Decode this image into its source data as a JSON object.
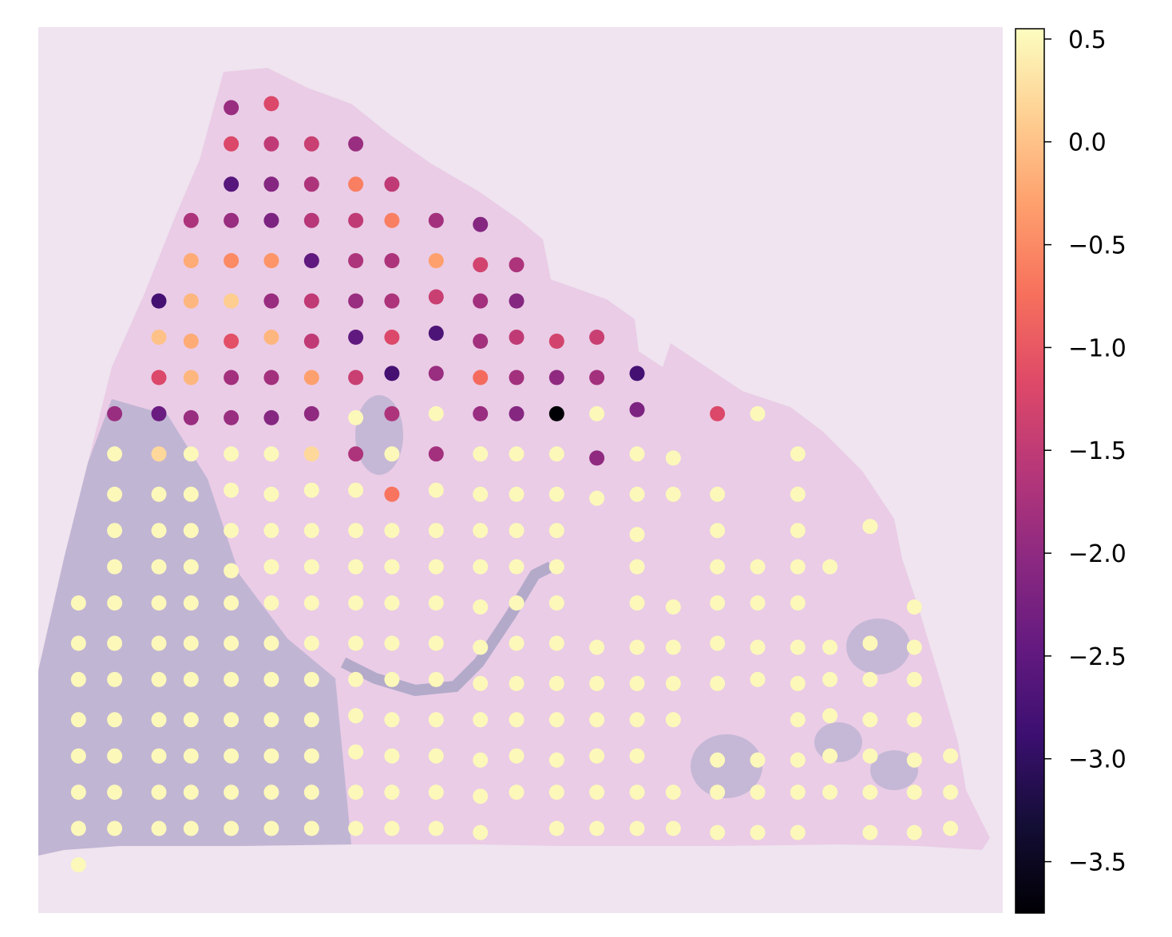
{
  "chart_data": {
    "type": "scatter",
    "title": "",
    "xlabel": "",
    "ylabel": "",
    "background": "tissue histology image (H&E stain)",
    "grid": false,
    "axes_visible": false,
    "colormap": "magma",
    "colorbar": {
      "placement": "right",
      "vmin": -3.75,
      "vmax": 0.55,
      "ticks": [
        {
          "value": 0.5,
          "label": "0.5"
        },
        {
          "value": 0.0,
          "label": "0.0"
        },
        {
          "value": -0.5,
          "label": "−0.5"
        },
        {
          "value": -1.0,
          "label": "−1.0"
        },
        {
          "value": -1.5,
          "label": "−1.5"
        },
        {
          "value": -2.0,
          "label": "−2.0"
        },
        {
          "value": -2.5,
          "label": "−2.5"
        },
        {
          "value": -3.0,
          "label": "−3.0"
        },
        {
          "value": -3.5,
          "label": "−3.5"
        }
      ]
    },
    "xlim": [
      0,
      24
    ],
    "ylim": [
      0,
      22
    ],
    "points": [
      [
        4.8,
        20,
        -1.9
      ],
      [
        5.8,
        20.1,
        -1.2
      ],
      [
        4.8,
        19.1,
        -1.2
      ],
      [
        5.8,
        19.1,
        -1.5
      ],
      [
        6.8,
        19.1,
        -1.4
      ],
      [
        7.9,
        19.1,
        -1.9
      ],
      [
        4.8,
        18.1,
        -2.6
      ],
      [
        5.8,
        18.1,
        -2.1
      ],
      [
        6.8,
        18.1,
        -1.7
      ],
      [
        7.9,
        18.1,
        -0.6
      ],
      [
        8.8,
        18.1,
        -1.5
      ],
      [
        3.8,
        17.2,
        -1.7
      ],
      [
        4.8,
        17.2,
        -1.9
      ],
      [
        5.8,
        17.2,
        -2.2
      ],
      [
        6.8,
        17.2,
        -1.6
      ],
      [
        7.9,
        17.2,
        -1.5
      ],
      [
        8.8,
        17.2,
        -0.6
      ],
      [
        9.9,
        17.2,
        -1.8
      ],
      [
        11,
        17.1,
        -2.1
      ],
      [
        3.8,
        16.2,
        -0.2
      ],
      [
        4.8,
        16.2,
        -0.5
      ],
      [
        5.8,
        16.2,
        -0.4
      ],
      [
        6.8,
        16.2,
        -2.5
      ],
      [
        7.9,
        16.2,
        -1.7
      ],
      [
        8.8,
        16.2,
        -1.7
      ],
      [
        9.9,
        16.2,
        -0.3
      ],
      [
        11,
        16.1,
        -1.3
      ],
      [
        11.9,
        16.1,
        -1.7
      ],
      [
        3,
        15.2,
        -2.8
      ],
      [
        3.8,
        15.2,
        -0.1
      ],
      [
        4.8,
        15.2,
        0.1
      ],
      [
        5.8,
        15.2,
        -1.9
      ],
      [
        6.8,
        15.2,
        -1.5
      ],
      [
        7.9,
        15.2,
        -1.9
      ],
      [
        8.8,
        15.2,
        -1.7
      ],
      [
        9.9,
        15.3,
        -1.4
      ],
      [
        11,
        15.2,
        -1.8
      ],
      [
        11.9,
        15.2,
        -2.1
      ],
      [
        3,
        14.3,
        0.0
      ],
      [
        3.8,
        14.2,
        -0.2
      ],
      [
        4.8,
        14.2,
        -1.1
      ],
      [
        5.8,
        14.3,
        -0.1
      ],
      [
        6.8,
        14.2,
        -1.5
      ],
      [
        7.9,
        14.3,
        -2.5
      ],
      [
        8.8,
        14.3,
        -1.2
      ],
      [
        9.9,
        14.4,
        -2.7
      ],
      [
        11,
        14.2,
        -1.8
      ],
      [
        11.9,
        14.3,
        -1.5
      ],
      [
        12.9,
        14.2,
        -1.3
      ],
      [
        13.9,
        14.3,
        -1.4
      ],
      [
        3,
        13.3,
        -1.2
      ],
      [
        3.8,
        13.3,
        -0.1
      ],
      [
        4.8,
        13.3,
        -1.8
      ],
      [
        5.8,
        13.3,
        -1.8
      ],
      [
        6.8,
        13.3,
        -0.3
      ],
      [
        7.9,
        13.3,
        -1.4
      ],
      [
        8.8,
        13.4,
        -2.8
      ],
      [
        9.9,
        13.4,
        -1.9
      ],
      [
        11,
        13.3,
        -0.8
      ],
      [
        11.9,
        13.3,
        -1.8
      ],
      [
        12.9,
        13.3,
        -2.0
      ],
      [
        13.9,
        13.3,
        -1.8
      ],
      [
        14.9,
        13.4,
        -2.8
      ],
      [
        1.9,
        12.4,
        -1.9
      ],
      [
        3,
        12.4,
        -2.4
      ],
      [
        3.8,
        12.3,
        -1.9
      ],
      [
        4.8,
        12.3,
        -1.9
      ],
      [
        5.8,
        12.3,
        -2.1
      ],
      [
        6.8,
        12.4,
        -2.0
      ],
      [
        7.9,
        12.3,
        0.5
      ],
      [
        8.8,
        12.4,
        -1.7
      ],
      [
        9.9,
        12.4,
        0.5
      ],
      [
        11,
        12.4,
        -1.9
      ],
      [
        11.9,
        12.4,
        -2.1
      ],
      [
        12.9,
        12.4,
        -3.75
      ],
      [
        13.9,
        12.4,
        0.5
      ],
      [
        14.9,
        12.5,
        -2.2
      ],
      [
        16.9,
        12.4,
        -1.2
      ],
      [
        17.9,
        12.4,
        0.5
      ],
      [
        1.9,
        11.4,
        0.5
      ],
      [
        3,
        11.4,
        0.2
      ],
      [
        3.8,
        11.4,
        0.5
      ],
      [
        4.8,
        11.4,
        0.5
      ],
      [
        5.8,
        11.4,
        0.5
      ],
      [
        6.8,
        11.4,
        0.2
      ],
      [
        7.9,
        11.4,
        -1.7
      ],
      [
        8.8,
        11.4,
        0.5
      ],
      [
        9.9,
        11.4,
        -1.8
      ],
      [
        11,
        11.4,
        0.5
      ],
      [
        11.9,
        11.4,
        0.5
      ],
      [
        12.9,
        11.4,
        0.5
      ],
      [
        13.9,
        11.3,
        -2.0
      ],
      [
        14.9,
        11.4,
        0.5
      ],
      [
        15.8,
        11.3,
        0.5
      ],
      [
        18.9,
        11.4,
        0.5
      ],
      [
        1.9,
        10.4,
        0.5
      ],
      [
        3,
        10.4,
        0.5
      ],
      [
        3.8,
        10.4,
        0.5
      ],
      [
        4.8,
        10.5,
        0.5
      ],
      [
        5.8,
        10.4,
        0.5
      ],
      [
        6.8,
        10.5,
        0.5
      ],
      [
        7.9,
        10.5,
        0.5
      ],
      [
        8.8,
        10.4,
        -0.7
      ],
      [
        9.9,
        10.5,
        0.5
      ],
      [
        11,
        10.4,
        0.5
      ],
      [
        11.9,
        10.4,
        0.5
      ],
      [
        12.9,
        10.4,
        0.5
      ],
      [
        13.9,
        10.3,
        0.5
      ],
      [
        14.9,
        10.4,
        0.5
      ],
      [
        15.8,
        10.4,
        0.5
      ],
      [
        16.9,
        10.4,
        0.5
      ],
      [
        18.9,
        10.4,
        0.5
      ],
      [
        1.9,
        9.5,
        0.5
      ],
      [
        3,
        9.5,
        0.5
      ],
      [
        3.8,
        9.5,
        0.5
      ],
      [
        4.8,
        9.5,
        0.5
      ],
      [
        5.8,
        9.5,
        0.5
      ],
      [
        6.8,
        9.5,
        0.5
      ],
      [
        7.9,
        9.5,
        0.5
      ],
      [
        8.8,
        9.5,
        0.5
      ],
      [
        9.9,
        9.5,
        0.5
      ],
      [
        11,
        9.5,
        0.5
      ],
      [
        11.9,
        9.5,
        0.5
      ],
      [
        12.9,
        9.5,
        0.5
      ],
      [
        14.9,
        9.4,
        0.5
      ],
      [
        16.9,
        9.5,
        0.5
      ],
      [
        18.9,
        9.5,
        0.5
      ],
      [
        20.7,
        9.6,
        0.5
      ],
      [
        1.9,
        8.6,
        0.5
      ],
      [
        3,
        8.6,
        0.5
      ],
      [
        3.8,
        8.6,
        0.5
      ],
      [
        4.8,
        8.5,
        0.5
      ],
      [
        5.8,
        8.6,
        0.5
      ],
      [
        6.8,
        8.6,
        0.5
      ],
      [
        7.9,
        8.6,
        0.5
      ],
      [
        8.8,
        8.6,
        0.5
      ],
      [
        9.9,
        8.6,
        0.5
      ],
      [
        11,
        8.6,
        0.5
      ],
      [
        11.9,
        8.6,
        0.5
      ],
      [
        12.9,
        8.6,
        0.5
      ],
      [
        14.9,
        8.6,
        0.5
      ],
      [
        16.9,
        8.6,
        0.5
      ],
      [
        17.9,
        8.6,
        0.5
      ],
      [
        18.9,
        8.6,
        0.5
      ],
      [
        19.7,
        8.6,
        0.5
      ],
      [
        1,
        7.7,
        0.5
      ],
      [
        1.9,
        7.7,
        0.5
      ],
      [
        3,
        7.7,
        0.5
      ],
      [
        3.8,
        7.7,
        0.5
      ],
      [
        4.8,
        7.7,
        0.5
      ],
      [
        5.8,
        7.7,
        0.5
      ],
      [
        6.8,
        7.7,
        0.5
      ],
      [
        7.9,
        7.7,
        0.5
      ],
      [
        8.8,
        7.7,
        0.5
      ],
      [
        9.9,
        7.7,
        0.5
      ],
      [
        11,
        7.6,
        0.5
      ],
      [
        11.9,
        7.7,
        0.5
      ],
      [
        12.9,
        7.7,
        0.5
      ],
      [
        14.9,
        7.7,
        0.5
      ],
      [
        15.8,
        7.6,
        0.5
      ],
      [
        16.9,
        7.7,
        0.5
      ],
      [
        17.9,
        7.7,
        0.5
      ],
      [
        18.9,
        7.7,
        0.5
      ],
      [
        21.8,
        7.6,
        0.5
      ],
      [
        1,
        6.7,
        0.5
      ],
      [
        1.9,
        6.7,
        0.5
      ],
      [
        3,
        6.7,
        0.5
      ],
      [
        3.8,
        6.7,
        0.5
      ],
      [
        4.8,
        6.7,
        0.5
      ],
      [
        5.8,
        6.7,
        0.5
      ],
      [
        6.8,
        6.7,
        0.5
      ],
      [
        7.9,
        6.7,
        0.5
      ],
      [
        8.8,
        6.7,
        0.5
      ],
      [
        9.9,
        6.7,
        0.5
      ],
      [
        11,
        6.6,
        0.5
      ],
      [
        11.9,
        6.7,
        0.5
      ],
      [
        12.9,
        6.7,
        0.5
      ],
      [
        13.9,
        6.6,
        0.5
      ],
      [
        14.9,
        6.6,
        0.5
      ],
      [
        15.8,
        6.6,
        0.5
      ],
      [
        16.9,
        6.7,
        0.5
      ],
      [
        17.9,
        6.6,
        0.5
      ],
      [
        18.9,
        6.6,
        0.5
      ],
      [
        19.7,
        6.6,
        0.5
      ],
      [
        20.7,
        6.7,
        0.5
      ],
      [
        21.8,
        6.6,
        0.5
      ],
      [
        1,
        5.8,
        0.5
      ],
      [
        1.9,
        5.8,
        0.5
      ],
      [
        3,
        5.8,
        0.5
      ],
      [
        3.8,
        5.8,
        0.5
      ],
      [
        4.8,
        5.8,
        0.5
      ],
      [
        5.8,
        5.8,
        0.5
      ],
      [
        6.8,
        5.8,
        0.5
      ],
      [
        7.9,
        5.8,
        0.5
      ],
      [
        8.8,
        5.8,
        0.5
      ],
      [
        9.9,
        5.8,
        0.5
      ],
      [
        11,
        5.7,
        0.5
      ],
      [
        11.9,
        5.7,
        0.5
      ],
      [
        12.9,
        5.7,
        0.5
      ],
      [
        13.9,
        5.7,
        0.5
      ],
      [
        14.9,
        5.7,
        0.5
      ],
      [
        15.8,
        5.7,
        0.5
      ],
      [
        16.9,
        5.7,
        0.5
      ],
      [
        17.9,
        5.8,
        0.5
      ],
      [
        18.9,
        5.7,
        0.5
      ],
      [
        19.7,
        5.8,
        0.5
      ],
      [
        20.7,
        5.8,
        0.5
      ],
      [
        21.8,
        5.8,
        0.5
      ],
      [
        1,
        4.8,
        0.5
      ],
      [
        1.9,
        4.8,
        0.5
      ],
      [
        3,
        4.8,
        0.5
      ],
      [
        3.8,
        4.8,
        0.5
      ],
      [
        4.8,
        4.8,
        0.5
      ],
      [
        5.8,
        4.8,
        0.5
      ],
      [
        6.8,
        4.8,
        0.5
      ],
      [
        7.9,
        4.9,
        0.5
      ],
      [
        8.8,
        4.8,
        0.5
      ],
      [
        9.9,
        4.8,
        0.5
      ],
      [
        11,
        4.8,
        0.5
      ],
      [
        11.9,
        4.8,
        0.5
      ],
      [
        12.9,
        4.8,
        0.5
      ],
      [
        13.9,
        4.8,
        0.5
      ],
      [
        14.9,
        4.8,
        0.5
      ],
      [
        15.8,
        4.8,
        0.5
      ],
      [
        18.9,
        4.8,
        0.5
      ],
      [
        19.7,
        4.9,
        0.5
      ],
      [
        20.7,
        4.8,
        0.5
      ],
      [
        21.8,
        4.8,
        0.5
      ],
      [
        1,
        3.9,
        0.5
      ],
      [
        1.9,
        3.9,
        0.5
      ],
      [
        3,
        3.9,
        0.5
      ],
      [
        3.8,
        3.9,
        0.5
      ],
      [
        4.8,
        3.9,
        0.5
      ],
      [
        5.8,
        3.9,
        0.5
      ],
      [
        6.8,
        3.9,
        0.5
      ],
      [
        7.9,
        4.0,
        0.5
      ],
      [
        8.8,
        3.9,
        0.5
      ],
      [
        9.9,
        3.9,
        0.5
      ],
      [
        11,
        3.8,
        0.5
      ],
      [
        11.9,
        3.9,
        0.5
      ],
      [
        12.9,
        3.8,
        0.5
      ],
      [
        13.9,
        3.9,
        0.5
      ],
      [
        14.9,
        3.9,
        0.5
      ],
      [
        16.9,
        3.8,
        0.5
      ],
      [
        17.9,
        3.8,
        0.5
      ],
      [
        18.9,
        3.8,
        0.5
      ],
      [
        19.7,
        3.9,
        0.5
      ],
      [
        20.7,
        3.9,
        0.5
      ],
      [
        21.8,
        3.8,
        0.5
      ],
      [
        22.7,
        3.9,
        0.5
      ],
      [
        1,
        3.0,
        0.5
      ],
      [
        1.9,
        3.0,
        0.5
      ],
      [
        3,
        3.0,
        0.5
      ],
      [
        3.8,
        3.0,
        0.5
      ],
      [
        4.8,
        3.0,
        0.5
      ],
      [
        5.8,
        3.0,
        0.5
      ],
      [
        6.8,
        3.0,
        0.5
      ],
      [
        7.9,
        3.0,
        0.5
      ],
      [
        8.8,
        3.0,
        0.5
      ],
      [
        9.9,
        3.0,
        0.5
      ],
      [
        11,
        2.9,
        0.5
      ],
      [
        11.9,
        3.0,
        0.5
      ],
      [
        12.9,
        3.0,
        0.5
      ],
      [
        13.9,
        3.0,
        0.5
      ],
      [
        14.9,
        3.0,
        0.5
      ],
      [
        15.8,
        3.0,
        0.5
      ],
      [
        16.9,
        3.0,
        0.5
      ],
      [
        17.9,
        3.0,
        0.5
      ],
      [
        18.9,
        3.0,
        0.5
      ],
      [
        19.7,
        3.0,
        0.5
      ],
      [
        20.7,
        3.0,
        0.5
      ],
      [
        21.8,
        3.0,
        0.5
      ],
      [
        22.7,
        3.0,
        0.5
      ],
      [
        1,
        2.1,
        0.5
      ],
      [
        1.9,
        2.1,
        0.5
      ],
      [
        3,
        2.1,
        0.5
      ],
      [
        3.8,
        2.1,
        0.5
      ],
      [
        4.8,
        2.1,
        0.5
      ],
      [
        5.8,
        2.1,
        0.5
      ],
      [
        6.8,
        2.1,
        0.5
      ],
      [
        7.9,
        2.1,
        0.5
      ],
      [
        8.8,
        2.1,
        0.5
      ],
      [
        9.9,
        2.1,
        0.5
      ],
      [
        11,
        2.0,
        0.5
      ],
      [
        12.9,
        2.1,
        0.5
      ],
      [
        13.9,
        2.1,
        0.5
      ],
      [
        14.9,
        2.1,
        0.5
      ],
      [
        15.8,
        2.1,
        0.5
      ],
      [
        16.9,
        2.0,
        0.5
      ],
      [
        17.9,
        2.0,
        0.5
      ],
      [
        18.9,
        2.0,
        0.5
      ],
      [
        20.7,
        2.0,
        0.5
      ],
      [
        21.8,
        2.0,
        0.5
      ],
      [
        22.7,
        2.1,
        0.5
      ],
      [
        1,
        1.2,
        0.5
      ]
    ]
  }
}
